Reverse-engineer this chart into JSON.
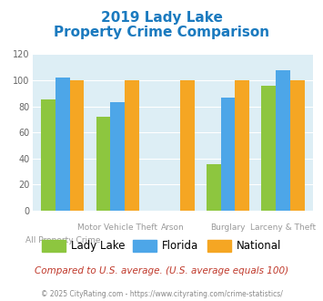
{
  "title_line1": "2019 Lady Lake",
  "title_line2": "Property Crime Comparison",
  "categories": [
    "All Property Crime",
    "Motor Vehicle Theft",
    "Arson",
    "Burglary",
    "Larceny & Theft"
  ],
  "top_labels": [
    "",
    "Motor Vehicle Theft",
    "Arson",
    "Burglary",
    "Larceny & Theft"
  ],
  "bot_labels": [
    "All Property Crime",
    "",
    "",
    "",
    ""
  ],
  "lady_lake": [
    85,
    72,
    0,
    36,
    96
  ],
  "florida": [
    102,
    83,
    0,
    87,
    108
  ],
  "national": [
    100,
    100,
    100,
    100,
    100
  ],
  "lady_lake_color": "#8dc63f",
  "florida_color": "#4da6e8",
  "national_color": "#f5a623",
  "bg_color": "#ddeef5",
  "title_color": "#1a7abf",
  "ylabel_max": 120,
  "ylabel_step": 20,
  "footer_text": "Compared to U.S. average. (U.S. average equals 100)",
  "copyright_text": "© 2025 CityRating.com - https://www.cityrating.com/crime-statistics/",
  "footer_color": "#c0392b",
  "copyright_color": "#888888",
  "tick_color": "#aaaaaa",
  "grid_color": "#ffffff"
}
